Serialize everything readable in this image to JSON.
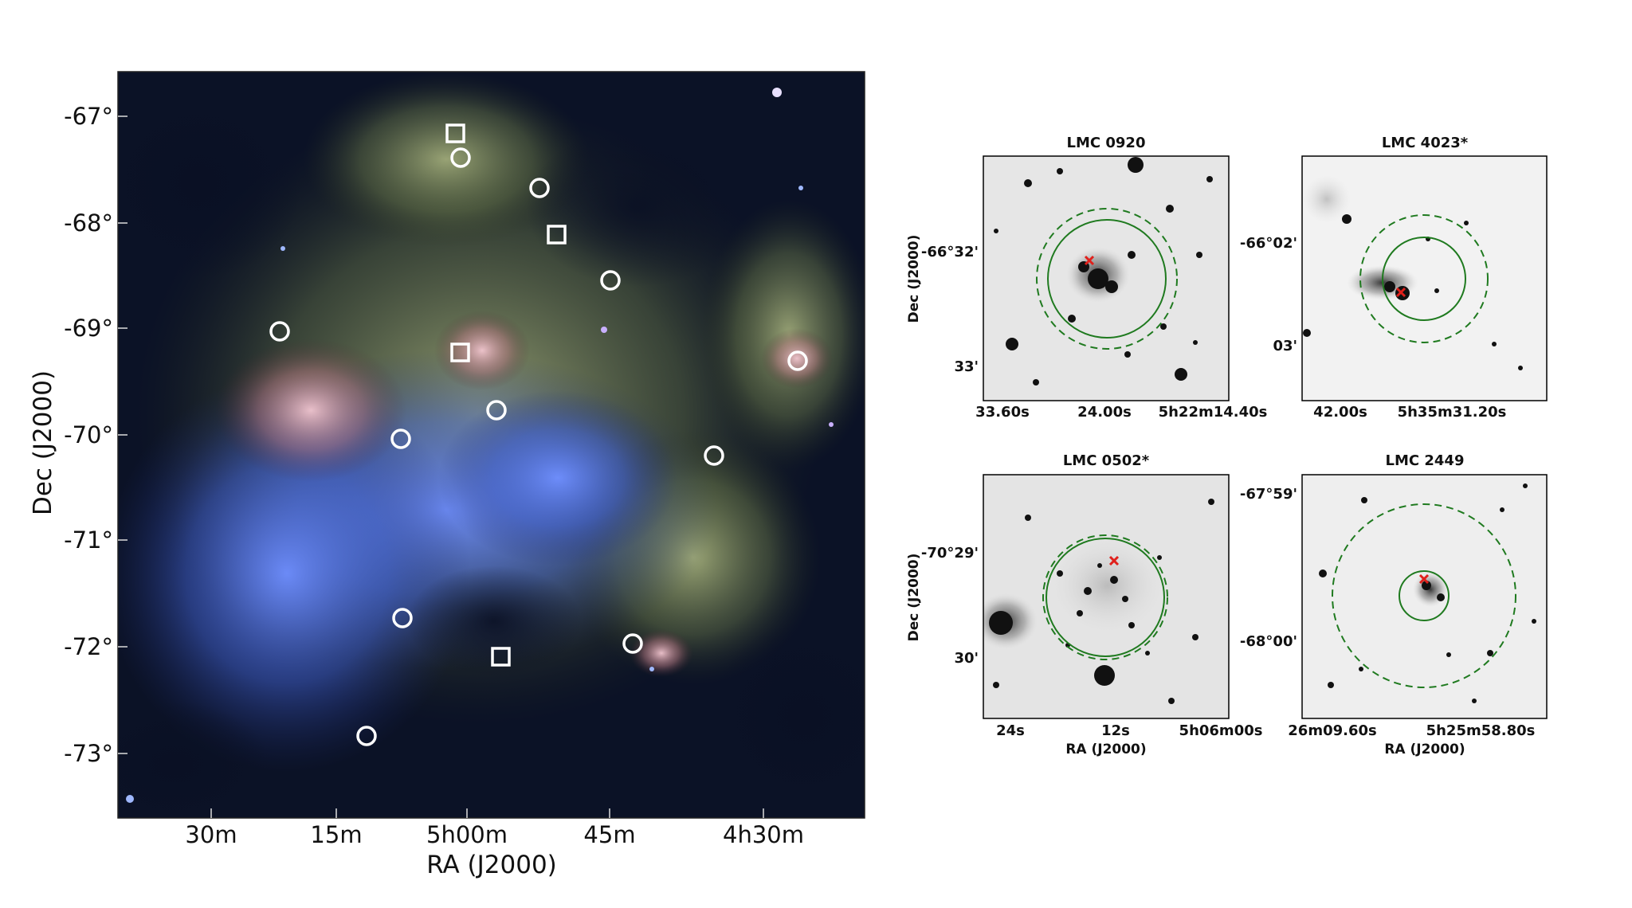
{
  "main_map": {
    "dec_ticks": [
      "-67°",
      "-68°",
      "-69°",
      "-70°",
      "-71°",
      "-72°",
      "-73°"
    ],
    "ra_ticks": [
      "30m",
      "15m",
      "5h00m",
      "45m",
      "4h30m"
    ],
    "xlabel": "RA (J2000)",
    "ylabel": "Dec (J2000)",
    "marker_color": "#ffffff"
  },
  "cutouts": [
    {
      "title": "LMC 0920",
      "x_ticks": [
        "33.60s",
        "24.00s",
        "5h22m14.40s"
      ],
      "y_ticks": [
        "-66°32'",
        "33'"
      ],
      "ylabel": "Dec (J2000)",
      "xlabel": ""
    },
    {
      "title": "LMC 4023*",
      "x_ticks": [
        "42.00s",
        "5h35m31.20s"
      ],
      "y_ticks": [
        "-66°02'",
        "03'"
      ],
      "ylabel": "",
      "xlabel": ""
    },
    {
      "title": "LMC 0502*",
      "x_ticks": [
        "24s",
        "12s",
        "5h06m00s"
      ],
      "y_ticks": [
        "-70°29'",
        "30'"
      ],
      "ylabel": "Dec (J2000)",
      "xlabel": "RA (J2000)"
    },
    {
      "title": "LMC 2449",
      "x_ticks": [
        "26m09.60s",
        "5h25m58.80s"
      ],
      "y_ticks": [
        "-67°59'",
        "-68°00'"
      ],
      "ylabel": "",
      "xlabel": "RA (J2000)"
    }
  ],
  "colors": {
    "circle_green": "#1f7a1f",
    "cross_red": "#e0201b",
    "nebula_dark": "#0b1226",
    "nebula_blue": "#4a6fd8",
    "nebula_green": "#9aa86a",
    "nebula_pink": "#c08090"
  }
}
